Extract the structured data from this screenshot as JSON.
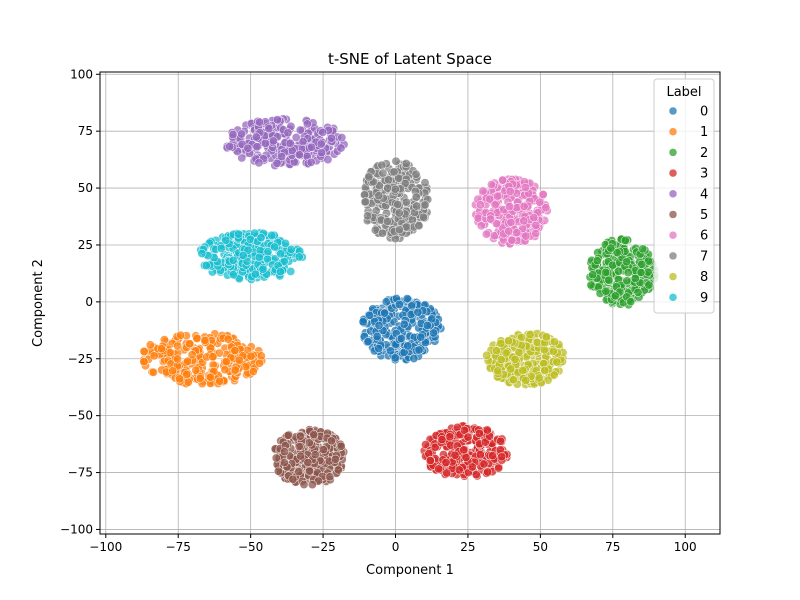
{
  "chart_data": {
    "type": "scatter",
    "title": "t-SNE of Latent Space",
    "xlabel": "Component 1",
    "ylabel": "Component 2",
    "xlim": [
      -102,
      112
    ],
    "ylim": [
      -102,
      101
    ],
    "xticks": [
      -100,
      -75,
      -50,
      -25,
      0,
      25,
      50,
      75,
      100
    ],
    "yticks": [
      -100,
      -75,
      -50,
      -25,
      0,
      25,
      50,
      75,
      100
    ],
    "grid": true,
    "legend": {
      "title": "Label",
      "placement": "top-right"
    },
    "clusters": [
      {
        "label": "0",
        "color": "#1f77b4",
        "center": [
          2,
          -12
        ],
        "spread": [
          13,
          13
        ],
        "n": 260
      },
      {
        "label": "1",
        "color": "#ff7f0e",
        "center": [
          -67,
          -25
        ],
        "spread": [
          20,
          11
        ],
        "n": 260
      },
      {
        "label": "2",
        "color": "#2ca02c",
        "center": [
          78,
          13
        ],
        "spread": [
          11,
          14
        ],
        "n": 260
      },
      {
        "label": "3",
        "color": "#d62728",
        "center": [
          24,
          -66
        ],
        "spread": [
          14,
          11
        ],
        "n": 260
      },
      {
        "label": "4",
        "color": "#9467bd",
        "center": [
          -38,
          70
        ],
        "spread": [
          20,
          10
        ],
        "n": 260
      },
      {
        "label": "5",
        "color": "#8c564b",
        "center": [
          -30,
          -68
        ],
        "spread": [
          12,
          12
        ],
        "n": 260
      },
      {
        "label": "6",
        "color": "#e377c2",
        "center": [
          40,
          40
        ],
        "spread": [
          12,
          14
        ],
        "n": 260
      },
      {
        "label": "7",
        "color": "#7f7f7f",
        "center": [
          0,
          45
        ],
        "spread": [
          11,
          17
        ],
        "n": 260
      },
      {
        "label": "8",
        "color": "#bcbd22",
        "center": [
          45,
          -25
        ],
        "spread": [
          13,
          11
        ],
        "n": 260
      },
      {
        "label": "9",
        "color": "#17becf",
        "center": [
          -50,
          20
        ],
        "spread": [
          17,
          10
        ],
        "n": 260
      }
    ]
  }
}
